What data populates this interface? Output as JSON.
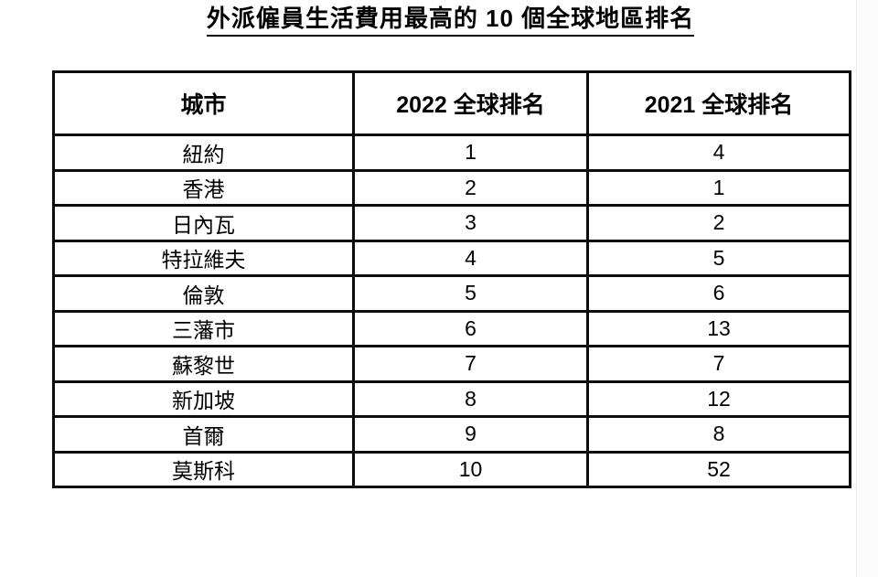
{
  "page": {
    "title": "外派僱員生活費用最高的 10 個全球地區排名"
  },
  "table": {
    "columns": [
      "城市",
      "2022 全球排名",
      "2021 全球排名"
    ],
    "rows": [
      {
        "city": "紐約",
        "rank_2022": "1",
        "rank_2021": "4"
      },
      {
        "city": "香港",
        "rank_2022": "2",
        "rank_2021": "1"
      },
      {
        "city": "日內瓦",
        "rank_2022": "3",
        "rank_2021": "2"
      },
      {
        "city": "特拉維夫",
        "rank_2022": "4",
        "rank_2021": "5"
      },
      {
        "city": "倫敦",
        "rank_2022": "5",
        "rank_2021": "6"
      },
      {
        "city": "三藩市",
        "rank_2022": "6",
        "rank_2021": "13"
      },
      {
        "city": "蘇黎世",
        "rank_2022": "7",
        "rank_2021": "7"
      },
      {
        "city": "新加坡",
        "rank_2022": "8",
        "rank_2021": "12"
      },
      {
        "city": "首爾",
        "rank_2022": "9",
        "rank_2021": "8"
      },
      {
        "city": "莫斯科",
        "rank_2022": "10",
        "rank_2021": "52"
      }
    ]
  },
  "colors": {
    "text": "#000000",
    "border": "#0d0d0d",
    "background": "#ffffff"
  }
}
